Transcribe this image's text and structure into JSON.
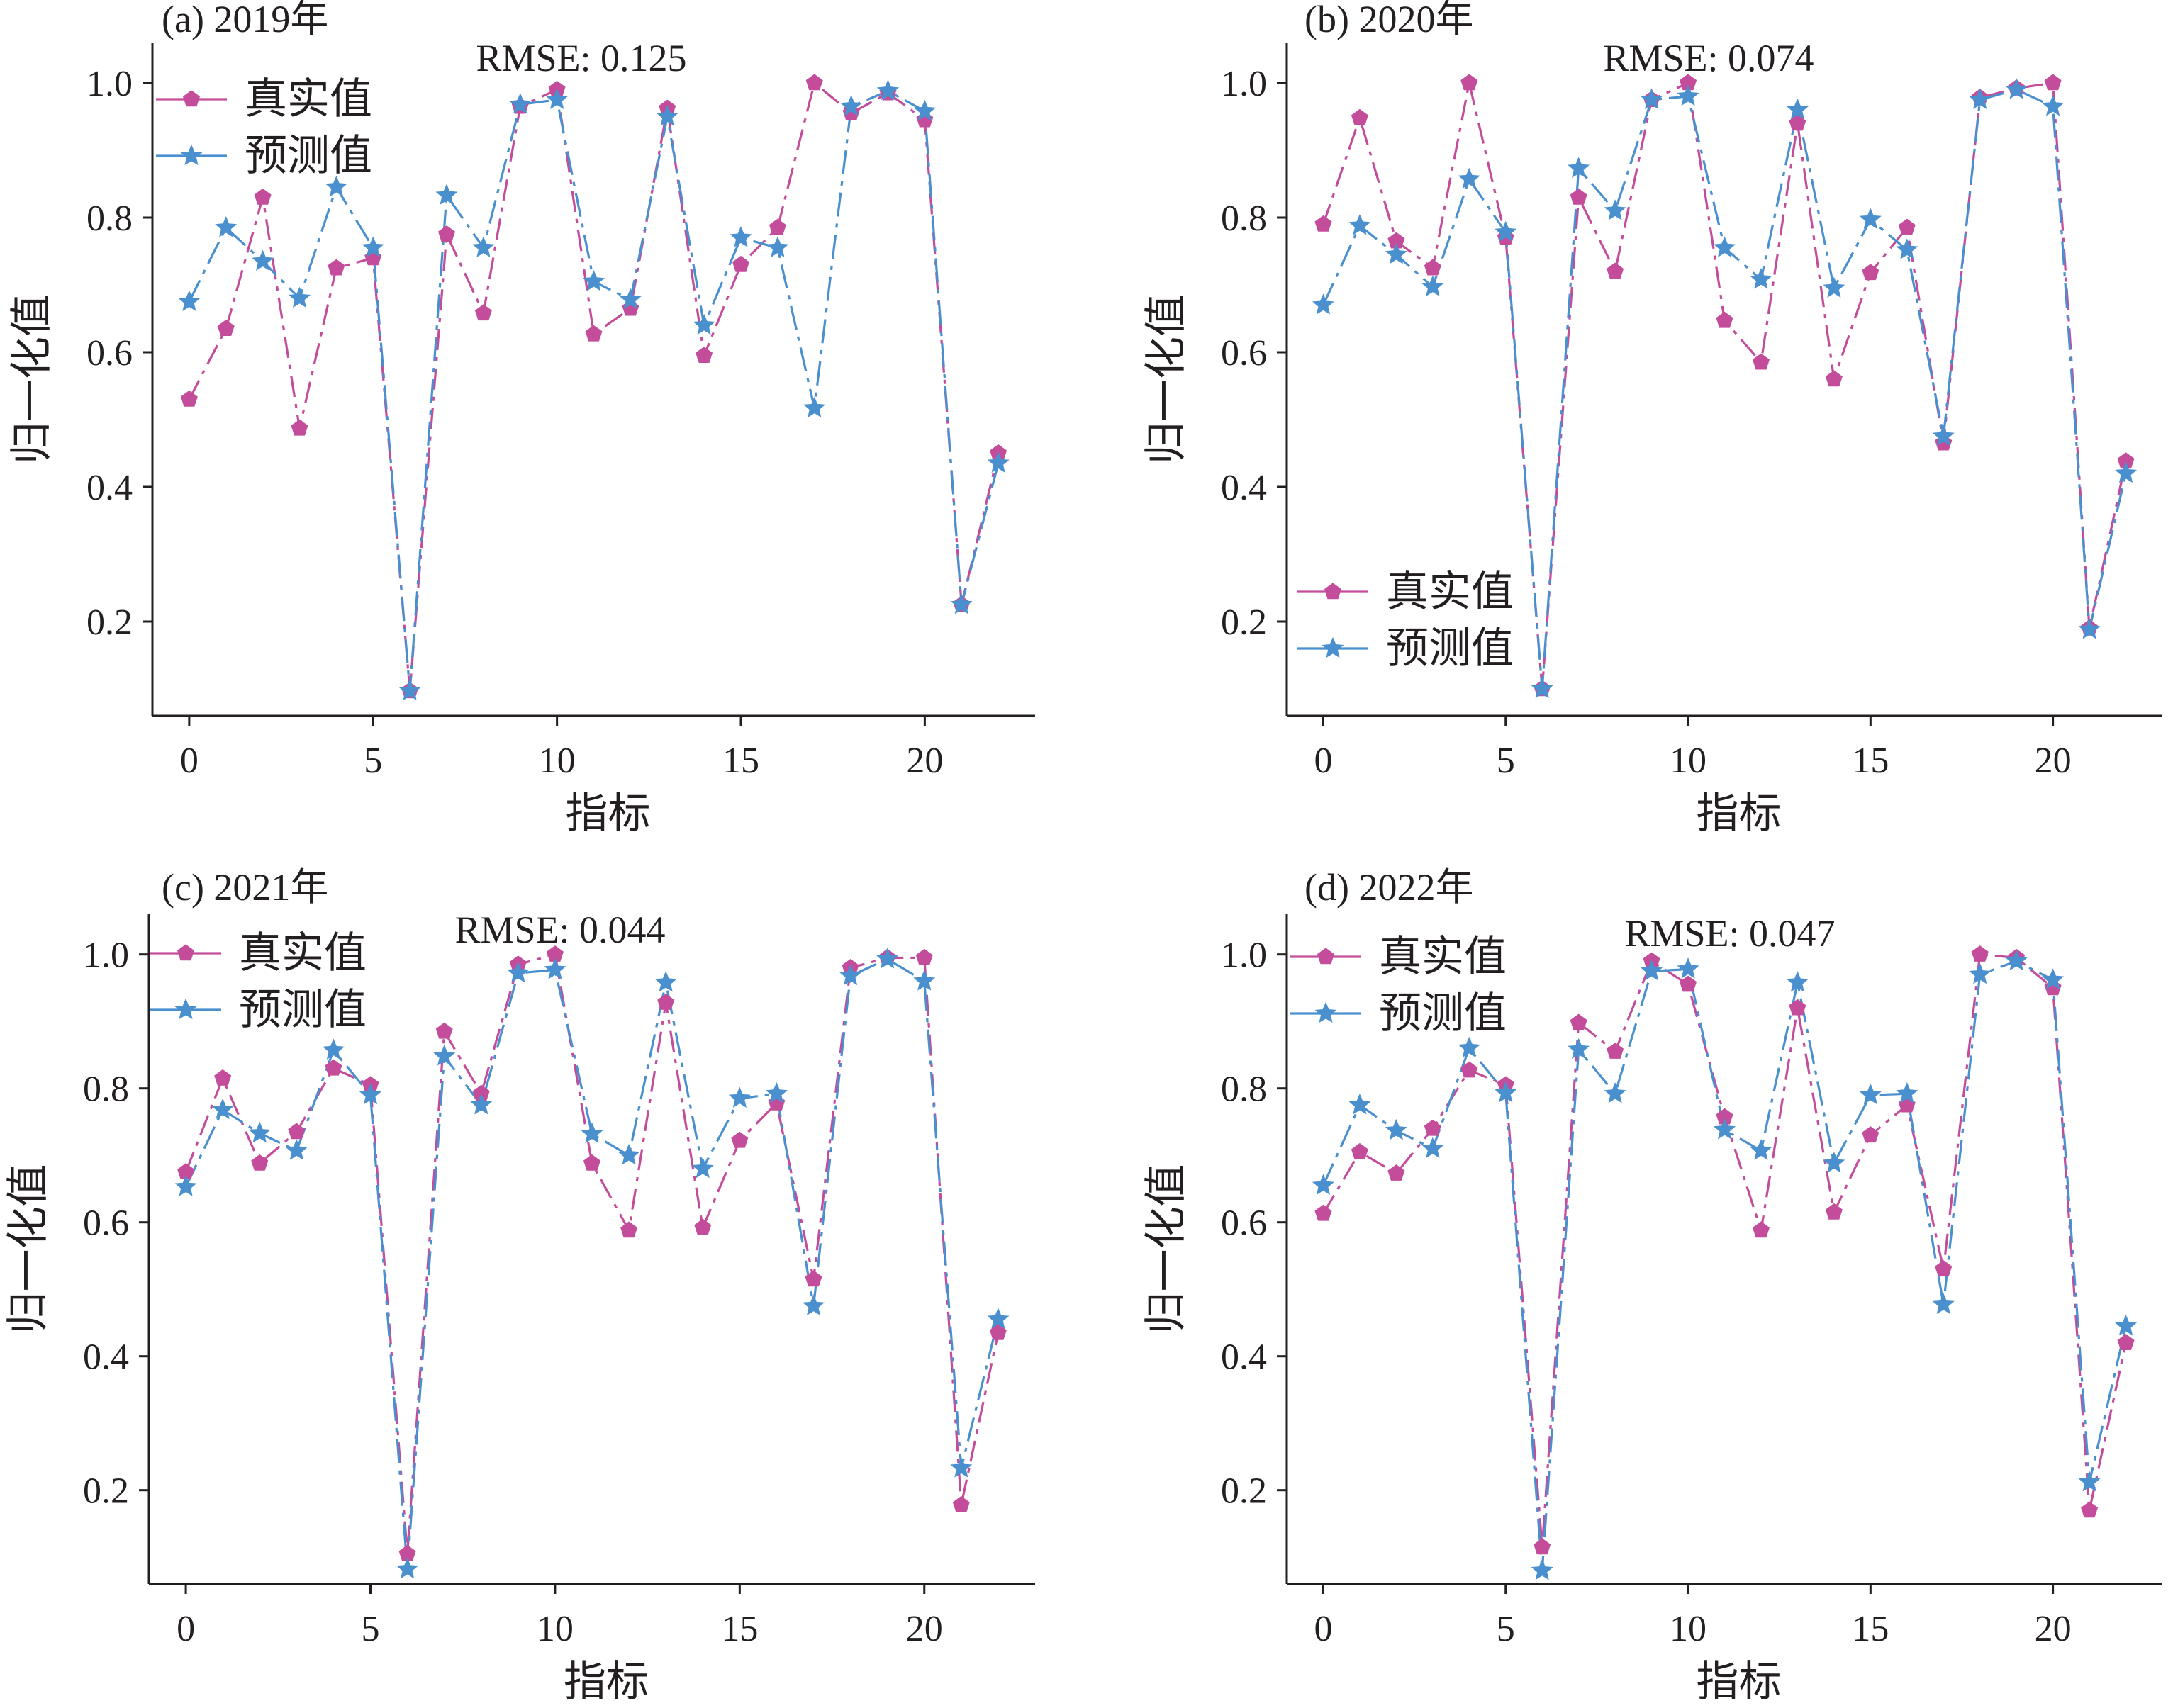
{
  "figure": {
    "legend_labels": {
      "actual": "真实值",
      "predicted": "预测值"
    }
  },
  "colors": {
    "actual": "#c44d9b",
    "predicted": "#4a90cf",
    "axis": "#231f20"
  },
  "chart_data": [
    {
      "type": "line",
      "title": "(a) 2019年",
      "annotation": "RMSE: 0.125",
      "xlabel": "指标",
      "ylabel": "归一化值",
      "xlim": [
        -1,
        23
      ],
      "ylim": [
        0.06,
        1.06
      ],
      "xticks": [
        0,
        5,
        10,
        15,
        20
      ],
      "yticks": [
        0.2,
        0.4,
        0.6,
        0.8,
        1.0
      ],
      "ytick_labels": [
        "0.2",
        "0.4",
        "0.6",
        "0.8",
        "1.0"
      ],
      "legend": "top-left",
      "x": [
        0,
        1,
        2,
        3,
        4,
        5,
        6,
        7,
        8,
        9,
        10,
        11,
        12,
        13,
        14,
        15,
        16,
        17,
        18,
        19,
        20,
        21,
        22
      ],
      "series": [
        {
          "name": "真实值",
          "marker": "pentagon",
          "values": [
            0.53,
            0.635,
            0.83,
            0.487,
            0.725,
            0.74,
            0.097,
            0.775,
            0.658,
            0.965,
            0.99,
            0.627,
            0.665,
            0.962,
            0.595,
            0.73,
            0.785,
            1.0,
            0.955,
            0.985,
            0.945,
            0.225,
            0.45
          ]
        },
        {
          "name": "预测值",
          "marker": "star",
          "values": [
            0.675,
            0.785,
            0.735,
            0.68,
            0.845,
            0.755,
            0.097,
            0.833,
            0.755,
            0.968,
            0.975,
            0.705,
            0.678,
            0.95,
            0.64,
            0.77,
            0.755,
            0.517,
            0.965,
            0.988,
            0.958,
            0.225,
            0.435
          ]
        }
      ]
    },
    {
      "type": "line",
      "title": "(b) 2020年",
      "annotation": "RMSE: 0.074",
      "xlabel": "指标",
      "ylabel": "归一化值",
      "xlim": [
        -1,
        23
      ],
      "ylim": [
        0.06,
        1.06
      ],
      "xticks": [
        0,
        5,
        10,
        15,
        20
      ],
      "yticks": [
        0.2,
        0.4,
        0.6,
        0.8,
        1.0
      ],
      "ytick_labels": [
        "0.2",
        "0.4",
        "0.6",
        "0.8",
        "1.0"
      ],
      "legend": "bottom-left",
      "x": [
        0,
        1,
        2,
        3,
        4,
        5,
        6,
        7,
        8,
        9,
        10,
        11,
        12,
        13,
        14,
        15,
        16,
        17,
        18,
        19,
        20,
        21,
        22
      ],
      "series": [
        {
          "name": "真实值",
          "marker": "pentagon",
          "values": [
            0.79,
            0.948,
            0.765,
            0.725,
            1.0,
            0.77,
            0.1,
            0.83,
            0.72,
            0.975,
            1.0,
            0.647,
            0.585,
            0.94,
            0.56,
            0.718,
            0.785,
            0.465,
            0.978,
            0.992,
            1.0,
            0.19,
            0.438
          ]
        },
        {
          "name": "预测值",
          "marker": "star",
          "values": [
            0.67,
            0.788,
            0.745,
            0.697,
            0.857,
            0.778,
            0.1,
            0.873,
            0.81,
            0.975,
            0.98,
            0.755,
            0.708,
            0.96,
            0.695,
            0.797,
            0.752,
            0.475,
            0.975,
            0.99,
            0.965,
            0.188,
            0.42
          ]
        }
      ]
    },
    {
      "type": "line",
      "title": "(c) 2021年",
      "annotation": "RMSE: 0.044",
      "xlabel": "指标",
      "ylabel": "归一化值",
      "xlim": [
        -1,
        23
      ],
      "ylim": [
        0.06,
        1.06
      ],
      "xticks": [
        0,
        5,
        10,
        15,
        20
      ],
      "yticks": [
        0.2,
        0.4,
        0.6,
        0.8,
        1.0
      ],
      "ytick_labels": [
        "0.2",
        "0.4",
        "0.6",
        "0.8",
        "1.0"
      ],
      "legend": "top-left",
      "x": [
        0,
        1,
        2,
        3,
        4,
        5,
        6,
        7,
        8,
        9,
        10,
        11,
        12,
        13,
        14,
        15,
        16,
        17,
        18,
        19,
        20,
        21,
        22
      ],
      "series": [
        {
          "name": "真实值",
          "marker": "pentagon",
          "values": [
            0.675,
            0.815,
            0.688,
            0.735,
            0.83,
            0.805,
            0.105,
            0.885,
            0.792,
            0.985,
            1.0,
            0.688,
            0.588,
            0.928,
            0.592,
            0.722,
            0.778,
            0.515,
            0.98,
            0.995,
            0.995,
            0.178,
            0.435
          ]
        },
        {
          "name": "预测值",
          "marker": "star",
          "values": [
            0.653,
            0.768,
            0.733,
            0.707,
            0.857,
            0.79,
            0.082,
            0.848,
            0.775,
            0.972,
            0.977,
            0.732,
            0.7,
            0.958,
            0.68,
            0.785,
            0.792,
            0.475,
            0.968,
            0.993,
            0.96,
            0.233,
            0.455
          ]
        }
      ]
    },
    {
      "type": "line",
      "title": "(d) 2022年",
      "annotation": "RMSE: 0.047",
      "xlabel": "指标",
      "ylabel": "归一化值",
      "xlim": [
        -1,
        23
      ],
      "ylim": [
        0.06,
        1.06
      ],
      "xticks": [
        0,
        5,
        10,
        15,
        20
      ],
      "yticks": [
        0.2,
        0.4,
        0.6,
        0.8,
        1.0
      ],
      "ytick_labels": [
        "0.2",
        "0.4",
        "0.6",
        "0.8",
        "1.0"
      ],
      "legend": "top-left",
      "x": [
        0,
        1,
        2,
        3,
        4,
        5,
        6,
        7,
        8,
        9,
        10,
        11,
        12,
        13,
        14,
        15,
        16,
        17,
        18,
        19,
        20,
        21,
        22
      ],
      "series": [
        {
          "name": "真实值",
          "marker": "pentagon",
          "values": [
            0.613,
            0.705,
            0.673,
            0.74,
            0.827,
            0.805,
            0.115,
            0.898,
            0.855,
            0.99,
            0.955,
            0.757,
            0.588,
            0.92,
            0.615,
            0.73,
            0.775,
            0.53,
            1.0,
            0.995,
            0.95,
            0.17,
            0.42
          ]
        },
        {
          "name": "预测值",
          "marker": "star",
          "values": [
            0.655,
            0.775,
            0.737,
            0.71,
            0.86,
            0.793,
            0.08,
            0.858,
            0.792,
            0.975,
            0.978,
            0.738,
            0.707,
            0.958,
            0.688,
            0.79,
            0.792,
            0.477,
            0.97,
            0.99,
            0.962,
            0.212,
            0.445
          ]
        }
      ]
    }
  ]
}
